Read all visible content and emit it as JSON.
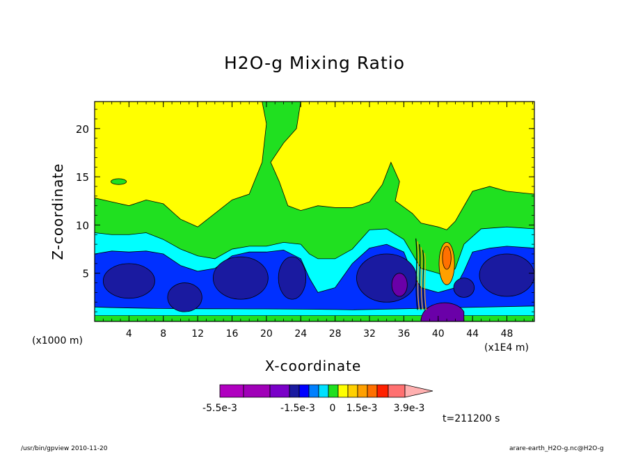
{
  "footer": {
    "left": "/usr/bin/gpview  2010-11-20",
    "right": "arare-earth_H2O-g.nc@H2O-g"
  },
  "time_label": "t=211200 s",
  "x_unit": "(x1000 m)",
  "x_scale": "(x1E4 m)",
  "colorbar": {
    "colors": [
      "#b000c0",
      "#a000b8",
      "#7a00c8",
      "#1a1aa0",
      "#0000ff",
      "#0080ff",
      "#00e0ff",
      "#20e020",
      "#ffff00",
      "#ffd000",
      "#ffa000",
      "#ff7000",
      "#ff2000",
      "#ff7070",
      "#ffb0b0"
    ],
    "labels": [
      "-5.5e-3",
      "-1.5e-3",
      "0",
      "1.5e-3",
      "3.9e-3"
    ]
  },
  "chart_data": {
    "type": "heatmap",
    "title": "H2O-g Mixing Ratio",
    "xlabel": "X-coordinate",
    "ylabel": "Z-coordinate",
    "xlim": [
      0,
      51.2
    ],
    "ylim": [
      0,
      22.8
    ],
    "x_ticks": [
      "4",
      "8",
      "12",
      "16",
      "20",
      "24",
      "28",
      "32",
      "36",
      "40",
      "44",
      "48"
    ],
    "y_ticks": [
      "5",
      "10",
      "15",
      "20"
    ],
    "colors": {
      "top": "#ffff00",
      "upper": "#20e020",
      "mid": "#00ffff",
      "lower": "#0030ff",
      "core": "#1a1aa0",
      "deep": "#6a00a8",
      "warm": "#ffa000"
    },
    "layers": [
      {
        "name": "green-upper",
        "boundary_top": [
          [
            0,
            12.8
          ],
          [
            2,
            12.4
          ],
          [
            4,
            12.0
          ],
          [
            6,
            12.6
          ],
          [
            8,
            12.2
          ],
          [
            10,
            10.6
          ],
          [
            12,
            9.8
          ],
          [
            14,
            11.2
          ],
          [
            16,
            12.6
          ],
          [
            18,
            13.2
          ],
          [
            19.5,
            16.5
          ],
          [
            20,
            20.5
          ],
          [
            19.5,
            22.8
          ],
          [
            24,
            22.8
          ],
          [
            23.5,
            20
          ],
          [
            22,
            18.5
          ],
          [
            20.5,
            16.5
          ],
          [
            21.5,
            14.5
          ],
          [
            22.5,
            12.0
          ],
          [
            24,
            11.5
          ],
          [
            26,
            12.0
          ],
          [
            28,
            11.8
          ],
          [
            30,
            11.8
          ],
          [
            32,
            12.4
          ],
          [
            33.5,
            14.2
          ],
          [
            34.5,
            16.5
          ],
          [
            35.5,
            14.5
          ],
          [
            35,
            12.5
          ],
          [
            37,
            11.2
          ],
          [
            38,
            10.2
          ],
          [
            40,
            9.8
          ],
          [
            41,
            9.5
          ],
          [
            42,
            10.4
          ],
          [
            44,
            13.5
          ],
          [
            46,
            14.0
          ],
          [
            48,
            13.5
          ],
          [
            51.2,
            13.2
          ]
        ]
      },
      {
        "name": "cyan-mid",
        "boundary_top": [
          [
            0,
            9.2
          ],
          [
            2,
            9.0
          ],
          [
            4,
            9.0
          ],
          [
            6,
            9.2
          ],
          [
            8,
            8.5
          ],
          [
            10,
            7.5
          ],
          [
            12,
            6.8
          ],
          [
            14,
            6.5
          ],
          [
            16,
            7.5
          ],
          [
            18,
            7.8
          ],
          [
            20,
            7.8
          ],
          [
            22,
            8.2
          ],
          [
            24,
            8.0
          ],
          [
            25,
            7.0
          ],
          [
            26,
            6.5
          ],
          [
            28,
            6.5
          ],
          [
            30,
            7.5
          ],
          [
            32,
            9.5
          ],
          [
            34,
            9.6
          ],
          [
            36,
            8.5
          ],
          [
            38,
            5.5
          ],
          [
            40,
            5.0
          ],
          [
            41,
            4.5
          ],
          [
            42,
            5.5
          ],
          [
            43,
            8.0
          ],
          [
            45,
            9.6
          ],
          [
            48,
            9.8
          ],
          [
            51.2,
            9.6
          ]
        ]
      },
      {
        "name": "blue-lower",
        "boundary_top": [
          [
            0,
            7.0
          ],
          [
            2,
            7.3
          ],
          [
            4,
            7.2
          ],
          [
            6,
            7.3
          ],
          [
            8,
            7.0
          ],
          [
            10,
            5.8
          ],
          [
            12,
            5.2
          ],
          [
            14,
            5.5
          ],
          [
            16,
            6.8
          ],
          [
            18,
            7.2
          ],
          [
            20,
            7.2
          ],
          [
            22,
            7.4
          ],
          [
            24,
            6.5
          ],
          [
            25,
            4.5
          ],
          [
            26,
            3.0
          ],
          [
            28,
            3.5
          ],
          [
            30,
            6.0
          ],
          [
            32,
            7.6
          ],
          [
            34,
            8.0
          ],
          [
            36,
            7.2
          ],
          [
            37,
            5.0
          ],
          [
            38,
            3.5
          ],
          [
            40,
            3.0
          ],
          [
            42,
            3.5
          ],
          [
            43,
            5.2
          ],
          [
            44,
            7.2
          ],
          [
            46,
            7.6
          ],
          [
            48,
            7.8
          ],
          [
            51.2,
            7.6
          ]
        ]
      }
    ]
  }
}
